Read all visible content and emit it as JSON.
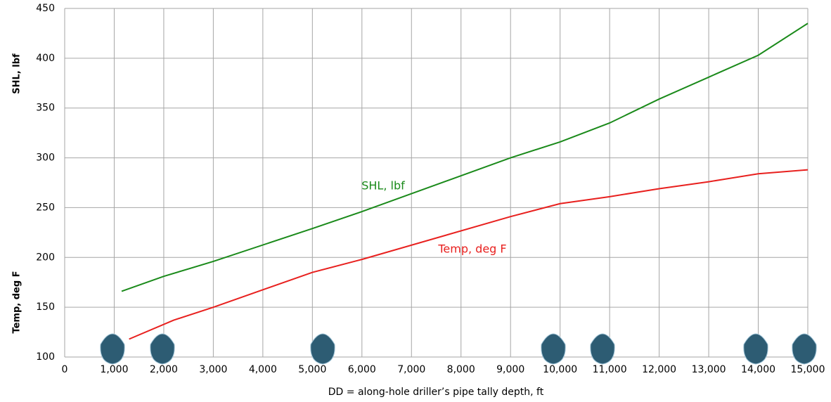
{
  "chart_data": {
    "type": "line",
    "annotations": [
      "SHL, lbf",
      "Temp, deg F"
    ],
    "y_labels": [
      "SHL, lbf",
      "Temp, deg F"
    ],
    "x_label": "DD = along-hole driller’s pipe tally depth, ft",
    "series": [
      {
        "name": "SHL, lbf",
        "color": "#1a8a1a",
        "x": [
          1150,
          2000,
          3000,
          5000,
          6000,
          9000,
          10000,
          11000,
          12000,
          13000,
          14000,
          15000
        ],
        "values": [
          166,
          181,
          196,
          229,
          246,
          300,
          316,
          335,
          359,
          381,
          403,
          435
        ]
      },
      {
        "name": "Temp, deg F",
        "color": "#e8201e",
        "x": [
          1300,
          2200,
          3000,
          5000,
          6000,
          9000,
          10000,
          11000,
          12000,
          13000,
          14000,
          15000
        ],
        "values": [
          118,
          137,
          150,
          185,
          198,
          241,
          254,
          261,
          269,
          276,
          284,
          288
        ]
      }
    ],
    "xlim": [
      0,
      15000
    ],
    "xticks": [
      0,
      {
        "value": 1000,
        "label": "1,000"
      },
      {
        "value": 2000,
        "label": "2,000"
      },
      {
        "value": 3000,
        "label": "3,000"
      },
      {
        "value": 4000,
        "label": "4,000"
      },
      {
        "value": 5000,
        "label": "5,000"
      },
      {
        "value": 6000,
        "label": "6,000"
      },
      {
        "value": 7000,
        "label": "7,000"
      },
      {
        "value": 8000,
        "label": "8,000"
      },
      {
        "value": 9000,
        "label": "9,000"
      },
      {
        "value": 10000,
        "label": "10,000"
      },
      {
        "value": 11000,
        "label": "11,000"
      },
      {
        "value": 12000,
        "label": "12,000"
      },
      {
        "value": 13000,
        "label": "13,000"
      },
      {
        "value": 14000,
        "label": "14,000"
      },
      {
        "value": 15000,
        "label": "15,000"
      }
    ],
    "ylim": [
      100,
      450
    ],
    "yticks": [
      100,
      150,
      200,
      250,
      300,
      350,
      400,
      450
    ],
    "grid": true
  }
}
